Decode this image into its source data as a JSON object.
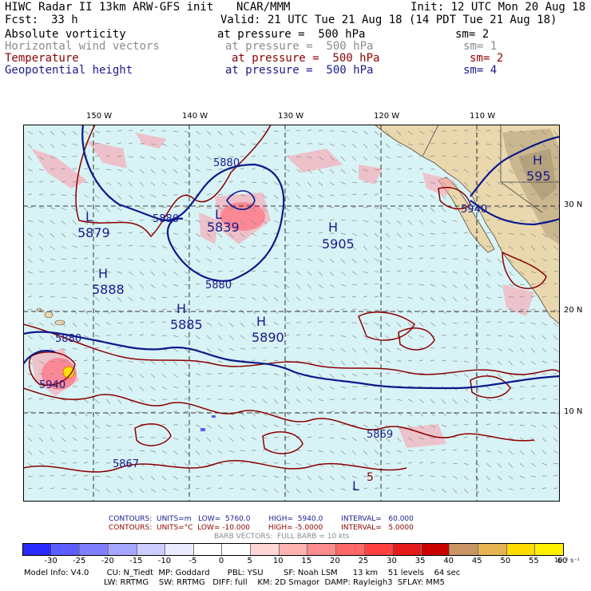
{
  "header": {
    "model": "HIWC Radar II 13km ARW-GFS init",
    "org": "NCAR/MMM",
    "init": "Init: 12 UTC Mon 20 Aug 18",
    "fcst_label": "Fcst:",
    "fcst_value": "33 h",
    "valid": "Valid: 21 UTC Tue 21 Aug 18 (14 PDT Tue 21 Aug 18)"
  },
  "fields": [
    {
      "name": "Absolute vorticity",
      "pressure": "at pressure =  500 hPa",
      "sm": "sm= 2",
      "color": "#000000"
    },
    {
      "name": "Horizontal wind vectors",
      "pressure": "at pressure =  500 hPa",
      "sm": "sm= 1",
      "color": "#8c8c8c"
    },
    {
      "name": "Temperature",
      "pressure": "at pressure =  500 hPa",
      "sm": "sm= 2",
      "color": "#8b0000"
    },
    {
      "name": "Geopotential height",
      "pressure": "at pressure =  500 hPa",
      "sm": "sm= 4",
      "color": "#1a1a8c"
    }
  ],
  "map": {
    "lon_labels": [
      "150 W",
      "140 W",
      "130 W",
      "120 W",
      "110 W"
    ],
    "lat_labels": [
      "30 N",
      "20 N",
      "10 N"
    ],
    "height_labels": [
      {
        "text": "5880"
      },
      {
        "text": "5880"
      },
      {
        "text": "5880"
      },
      {
        "text": "5880"
      },
      {
        "text": "5940"
      },
      {
        "text": "5940"
      },
      {
        "text": "5869"
      },
      {
        "text": "5867"
      }
    ],
    "pressure_centers": [
      {
        "type": "L",
        "value": "5879"
      },
      {
        "type": "L",
        "value": "5839"
      },
      {
        "type": "H",
        "value": "5905"
      },
      {
        "type": "H",
        "value": "5888"
      },
      {
        "type": "H",
        "value": "5885"
      },
      {
        "type": "H",
        "value": "5890"
      },
      {
        "type": "H",
        "value": "595"
      },
      {
        "type": "L",
        "value": "5"
      }
    ]
  },
  "footer": {
    "contours_height": "CONTOURS:  UNITS=m   LOW=  5760.0        HIGH=  5940.0        INTERVAL=   60.000",
    "contours_temp": "CONTOURS:  UNITS=°C  LOW= -10.000        HIGH= -5.0000        INTERVAL=   5.0000",
    "barbs": "BARB VECTORS:  FULL BARB = 10 kts",
    "model_info_1": "Model Info: V4.0       CU: N_Tiedt  MP: Goddard       PBL: YSU        SF: Noah LSM      13 km    51 levels    64 sec",
    "model_info_2": "LW: RRTMG    SW: RRTMG   DIFF: full    KM: 2D Smagor  DAMP: Rayleigh3  SFLAY: MM5"
  },
  "colorbar": {
    "ticks": [
      "-30",
      "-25",
      "-20",
      "-15",
      "-10",
      "-5",
      "0",
      "5",
      "10",
      "15",
      "20",
      "25",
      "30",
      "35",
      "40",
      "45",
      "50",
      "55",
      "60",
      "10⁻⁵ s⁻¹"
    ],
    "colors": [
      "#2b2bff",
      "#5c5cff",
      "#8080ff",
      "#a6a6ff",
      "#cccdff",
      "#ebebff",
      "#ffffff",
      "#ffffff",
      "#ffd6d6",
      "#ffb3b3",
      "#ff8c8c",
      "#ff6666",
      "#ff4040",
      "#e61a1a",
      "#c80000",
      "#c89664",
      "#e6b450",
      "#ffdc00",
      "#fff000"
    ]
  },
  "colors": {
    "ocean": "#d8f3f5",
    "land": "#e9d8ae",
    "height_contour": "#0b1a8c",
    "temp_contour": "#8b0000",
    "vort": "#ff9aa8"
  }
}
